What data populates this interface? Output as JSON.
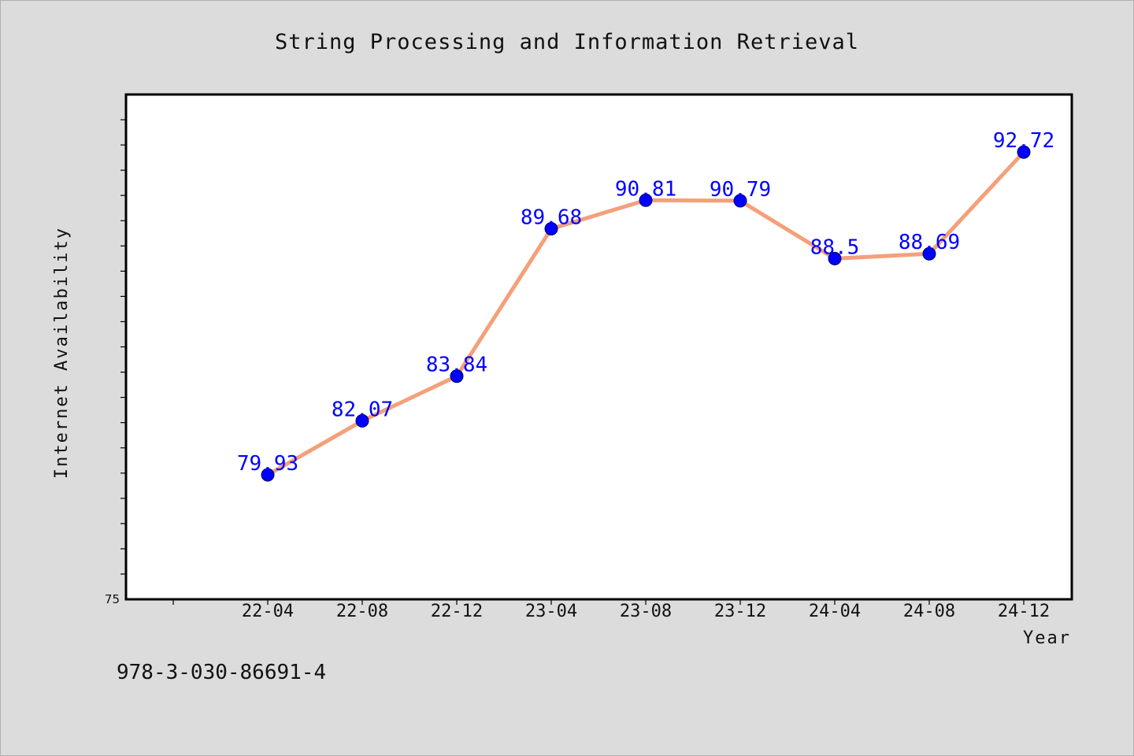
{
  "chart_data": {
    "type": "line",
    "title": "String Processing and Information Retrieval",
    "xlabel": "Year",
    "ylabel": "Internet Availability",
    "categories": [
      "22-04",
      "22-08",
      "22-12",
      "23-04",
      "23-08",
      "23-12",
      "24-04",
      "24-08",
      "24-12"
    ],
    "series": [
      {
        "values": [
          79.93,
          82.07,
          83.84,
          89.68,
          90.81,
          90.79,
          88.5,
          88.69,
          92.72
        ]
      }
    ],
    "y_tick_labels": [
      "75"
    ],
    "ylim": [
      75,
      95
    ],
    "data_labels": [
      "79.93",
      "82.07",
      "83.84",
      "89.68",
      "90.81",
      "90.79",
      "88.5",
      "88.69",
      "92.72"
    ],
    "grid": false,
    "legend": "none",
    "line_color": "#f4a07a",
    "marker_color": "#0000ff",
    "label_color": "#0000ff",
    "plot_background": "#ffffff",
    "page_background": "#dcdcdc"
  },
  "footnote": "978-3-030-86691-4"
}
